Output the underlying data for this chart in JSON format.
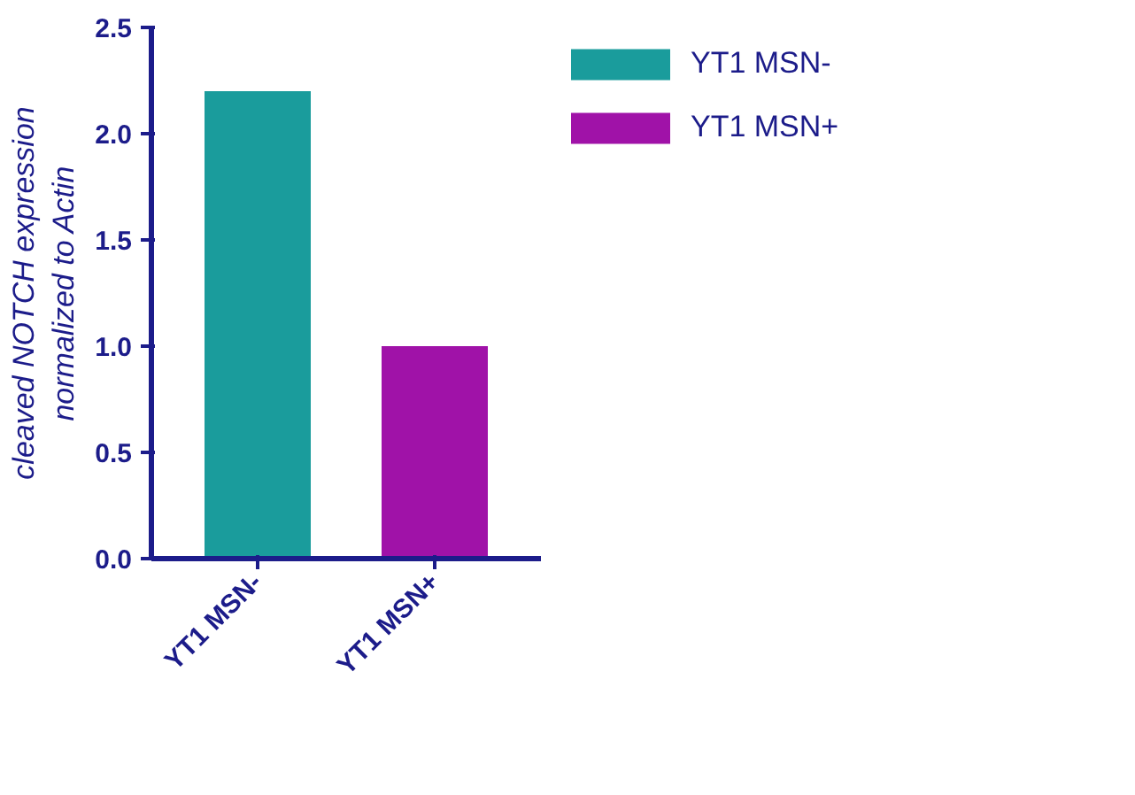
{
  "chart_data": {
    "type": "bar",
    "ylabel": "cleaved NOTCH expression\nnormalized to Actin",
    "categories": [
      "YT1 MSN-",
      "YT1 MSN+"
    ],
    "series": [
      {
        "name": "YT1 MSN-",
        "color": "#1a9c9c",
        "values": [
          2.2,
          null
        ]
      },
      {
        "name": "YT1 MSN+",
        "color": "#a012a8",
        "values": [
          null,
          1.0
        ]
      }
    ],
    "ylim": [
      0,
      2.5
    ],
    "yticks": [
      {
        "value": 0,
        "label": "0.0"
      },
      {
        "value": 0.5,
        "label": "0.5"
      },
      {
        "value": 1,
        "label": "1.0"
      },
      {
        "value": 1.5,
        "label": "1.5"
      },
      {
        "value": 2,
        "label": "2.0"
      },
      {
        "value": 2.5,
        "label": "2.5"
      }
    ],
    "grid": false,
    "legend": "top right"
  }
}
